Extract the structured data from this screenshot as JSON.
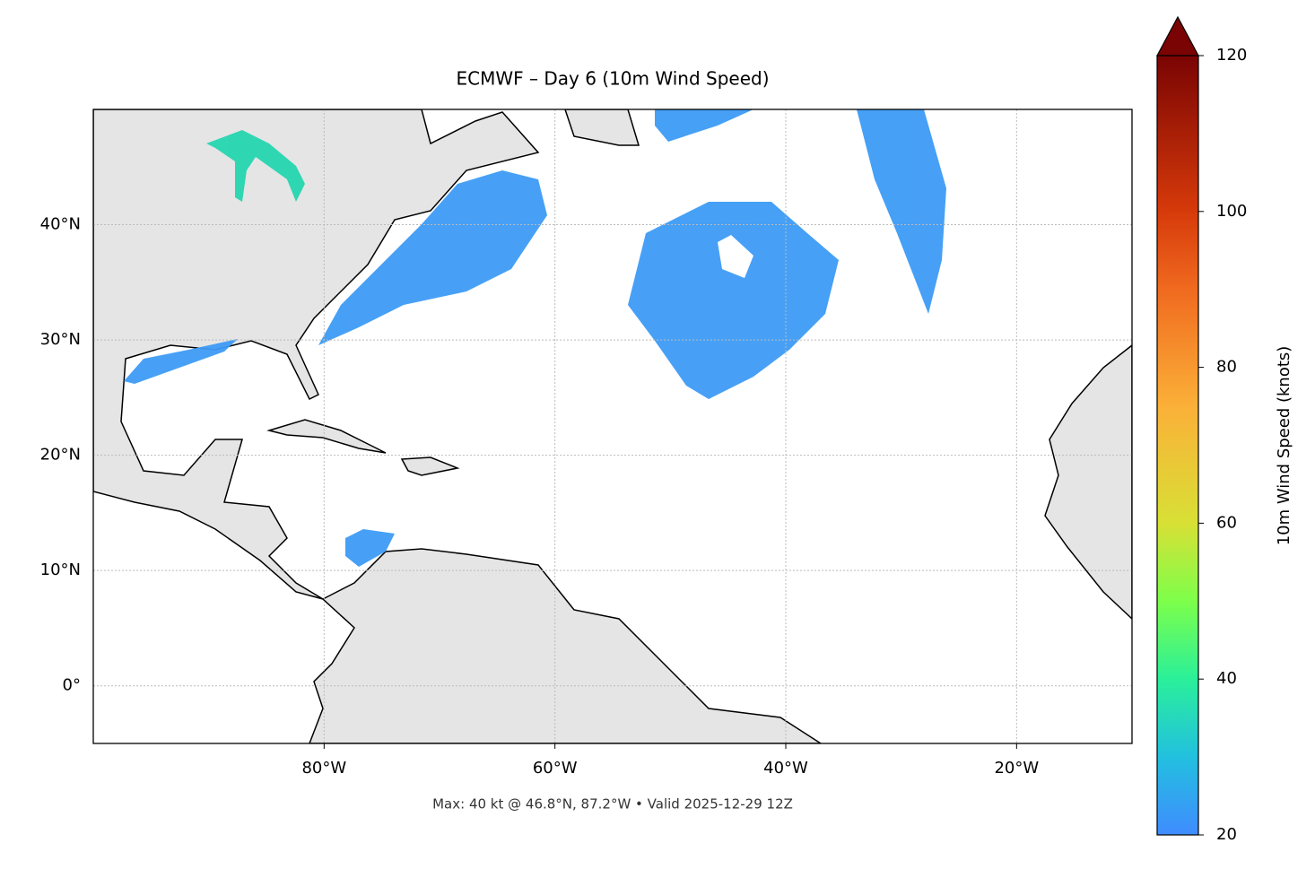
{
  "chart_data": {
    "type": "map",
    "title": "ECMWF – Day 6 (10m Wind Speed)",
    "xlim": [
      -100,
      -10
    ],
    "ylim": [
      -5,
      50
    ],
    "xticks": [
      {
        "value": -80,
        "label": "80°W"
      },
      {
        "value": -60,
        "label": "60°W"
      },
      {
        "value": -40,
        "label": "40°W"
      },
      {
        "value": -20,
        "label": "20°W"
      }
    ],
    "yticks": [
      {
        "value": 0,
        "label": "0°"
      },
      {
        "value": 10,
        "label": "10°N"
      },
      {
        "value": 20,
        "label": "20°N"
      },
      {
        "value": 30,
        "label": "30°N"
      },
      {
        "value": 40,
        "label": "40°N"
      }
    ],
    "grid": true,
    "colorbar": {
      "label": "10m Wind Speed (knots)",
      "lim": [
        20,
        120
      ],
      "ticks": [
        20,
        40,
        60,
        80,
        100,
        120
      ]
    },
    "note": "Max: 40 kt @ 46.8°N, 87.2°W • Valid 2025-12-29 12Z"
  }
}
